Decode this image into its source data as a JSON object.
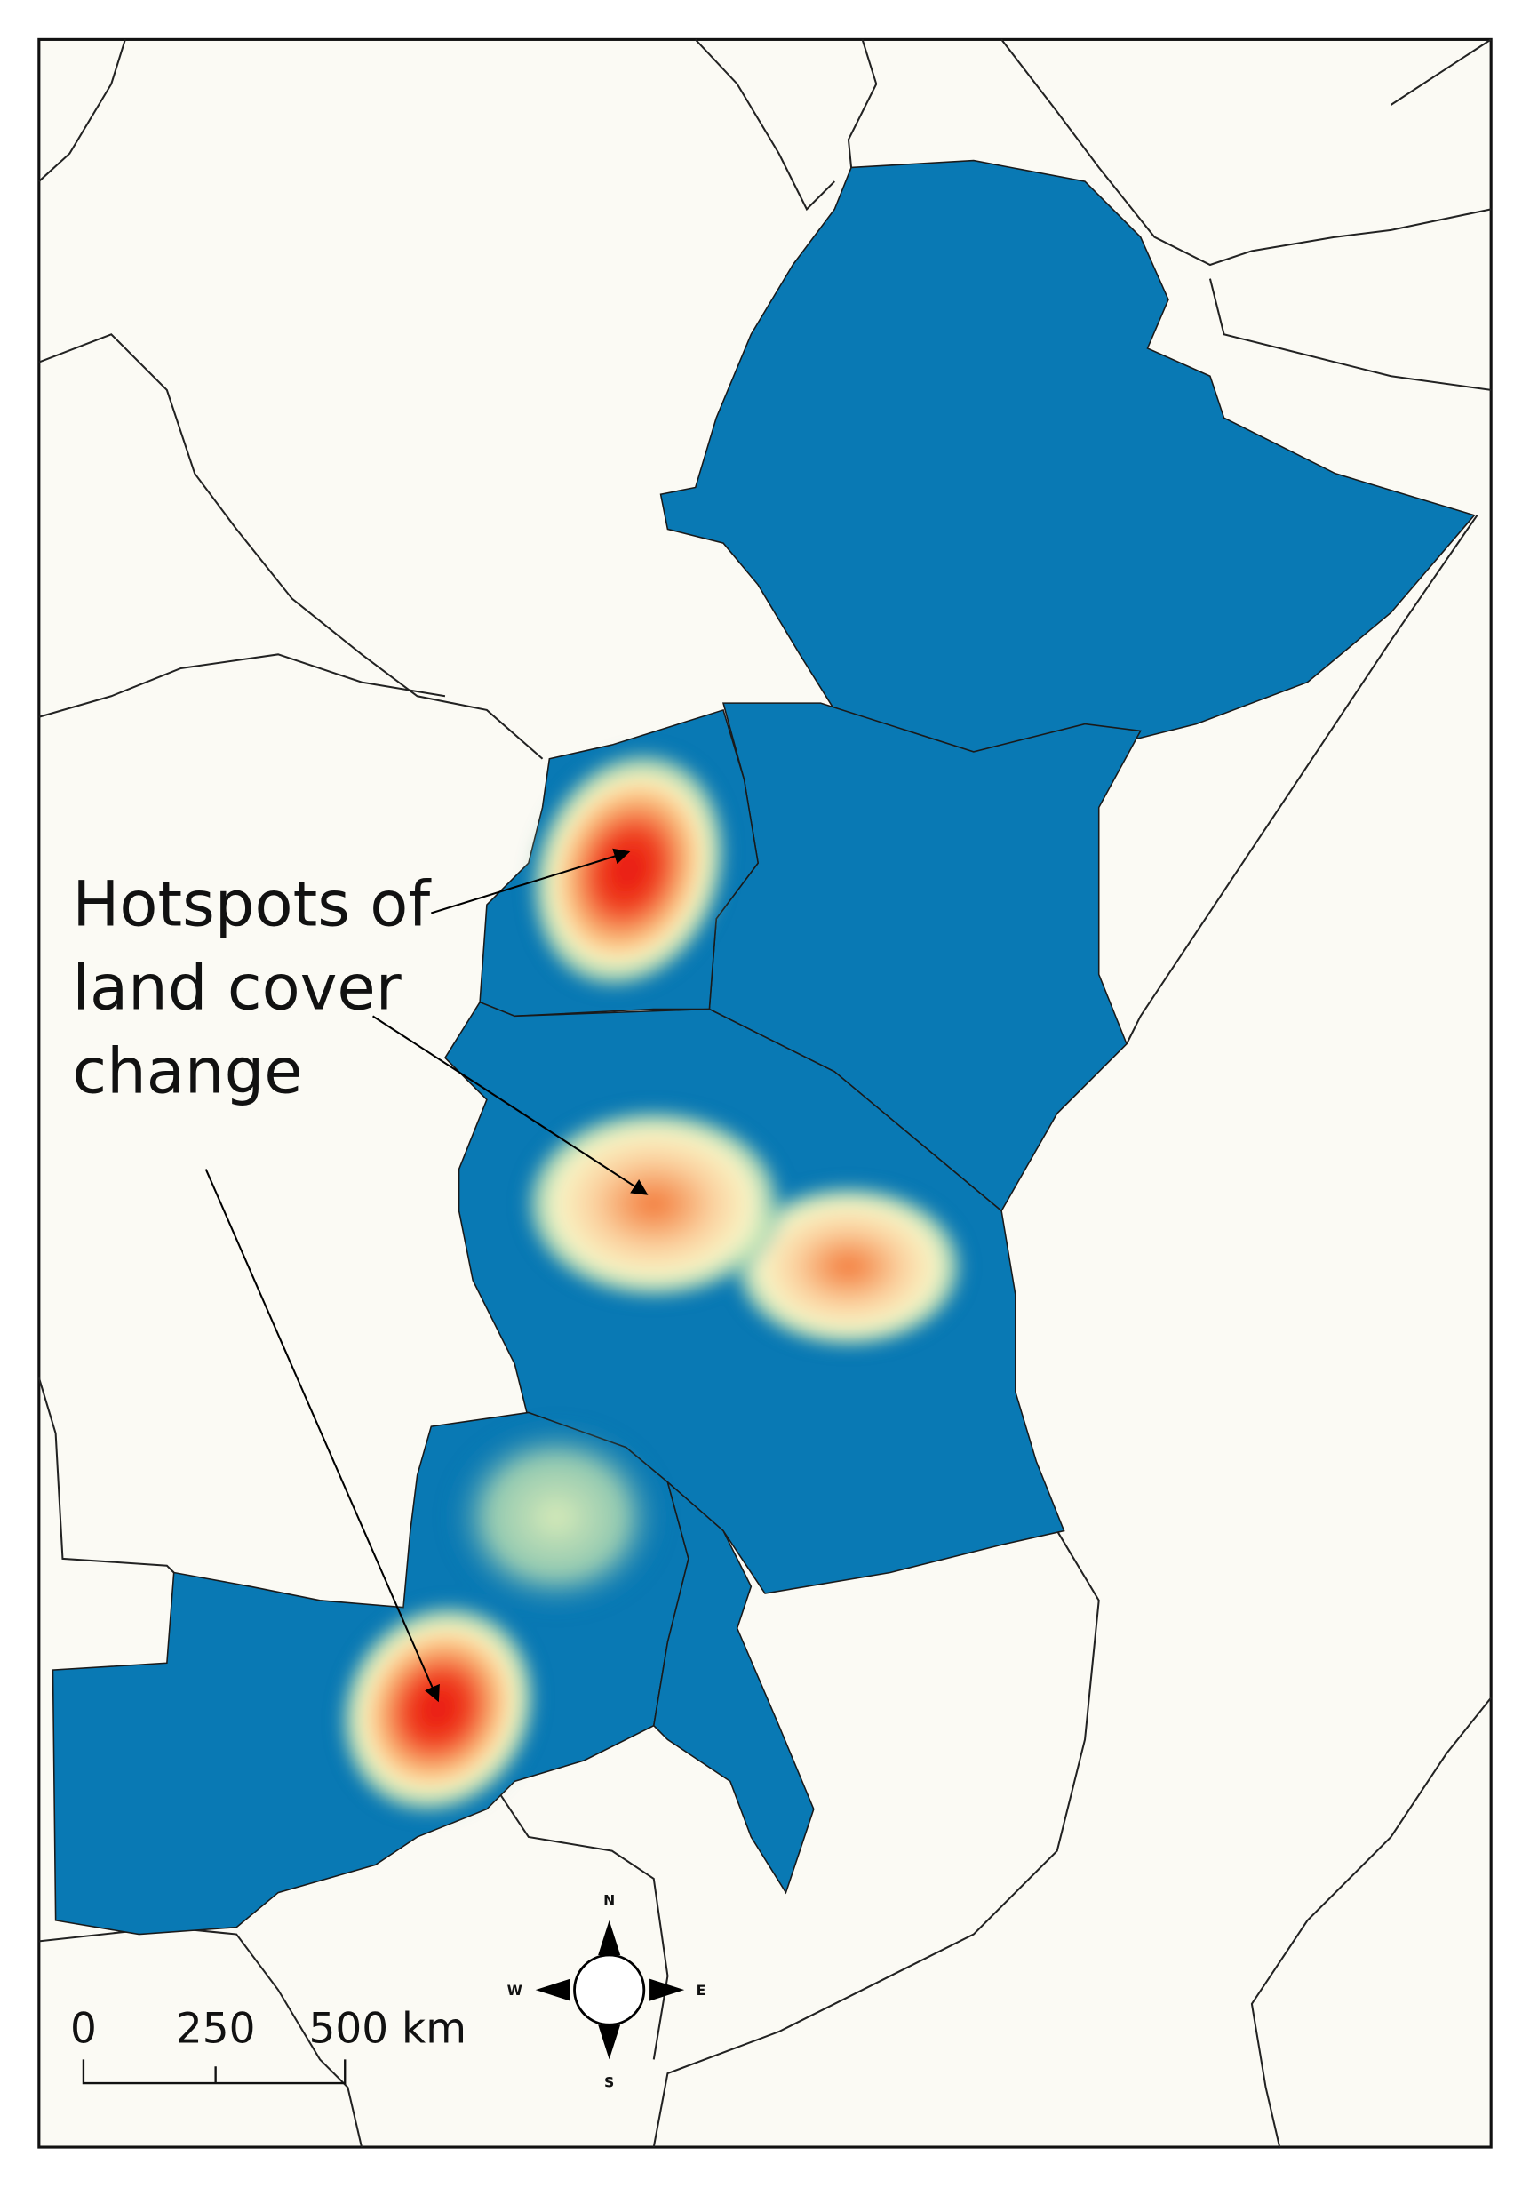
{
  "annotation": {
    "lines": [
      "Hotspots of",
      "land cover",
      "change"
    ]
  },
  "scale_bar": {
    "labels": [
      "0",
      "250",
      "500 km"
    ]
  },
  "compass": {
    "north": "N",
    "east": "E",
    "south": "S",
    "west": "W"
  }
}
